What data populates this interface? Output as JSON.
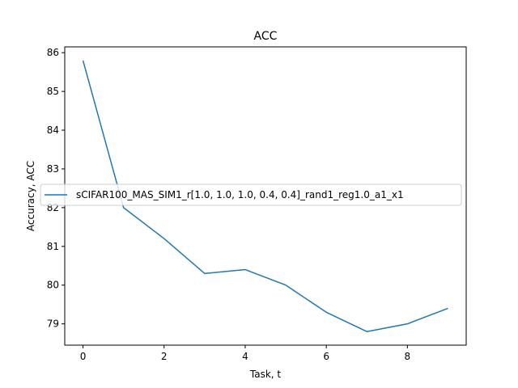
{
  "chart_data": {
    "type": "line",
    "title": "ACC",
    "xlabel": "Task, t",
    "ylabel": "Accuracy, ACC",
    "xlim": [
      -0.45,
      9.45
    ],
    "ylim": [
      78.45,
      86.15
    ],
    "xticks": [
      0,
      2,
      4,
      6,
      8
    ],
    "yticks": [
      79,
      80,
      81,
      82,
      83,
      84,
      85,
      86
    ],
    "grid": false,
    "legend_position": "center-right",
    "series": [
      {
        "name": "sCIFAR100_MAS_SIM1_r[1.0, 1.0, 1.0, 0.4, 0.4]_rand1_reg1.0_a1_x1",
        "color": "#1f77b4",
        "x": [
          0,
          1,
          2,
          3,
          4,
          5,
          6,
          7,
          8,
          9
        ],
        "y": [
          85.8,
          82.0,
          81.2,
          80.3,
          80.4,
          80.0,
          79.3,
          78.8,
          79.0,
          79.4
        ]
      }
    ]
  }
}
